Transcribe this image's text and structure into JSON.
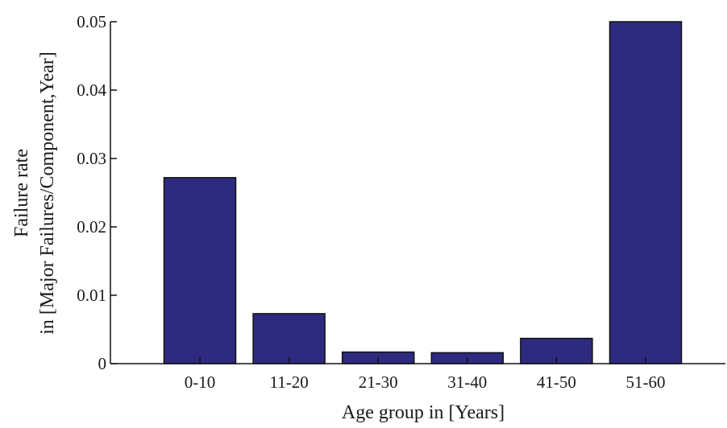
{
  "chart_data": {
    "type": "bar",
    "categories": [
      "0-10",
      "11-20",
      "21-30",
      "31-40",
      "41-50",
      "51-60"
    ],
    "values": [
      0.0272,
      0.0073,
      0.0017,
      0.0016,
      0.0037,
      0.05
    ],
    "xlabel": "Age group in [Years]",
    "ylabel_lines": [
      "Failure rate",
      "in [Major Failures/Component,Year]"
    ],
    "ylim": [
      0,
      0.05
    ],
    "yticks": [
      0,
      0.01,
      0.02,
      0.03,
      0.04,
      0.05
    ],
    "ytick_labels": [
      "0",
      "0.01",
      "0.02",
      "0.03",
      "0.04",
      "0.05"
    ],
    "grid": false,
    "legend": "none",
    "colors": {
      "bar_fill": "#2e2a80",
      "bar_stroke": "#111111",
      "axis": "#111111"
    }
  }
}
